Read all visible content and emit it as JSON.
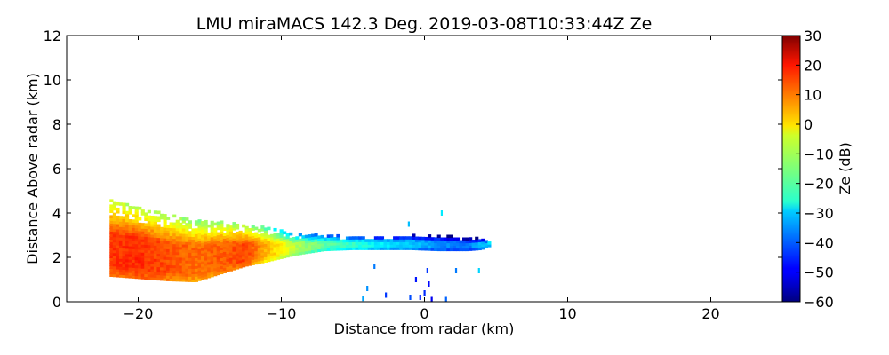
{
  "chart_data": {
    "type": "heatmap",
    "title": "LMU miraMACS 142.3 Deg. 2019-03-08T10:33:44Z  Ze",
    "xlabel": "Distance from radar (km)",
    "ylabel": "Distance Above radar  (km)",
    "xlim": [
      -25,
      25
    ],
    "ylim": [
      0,
      12
    ],
    "x_ticks": [
      -20,
      -10,
      0,
      10,
      20
    ],
    "x_tick_labels": [
      "−20",
      "−10",
      "0",
      "10",
      "20"
    ],
    "y_ticks": [
      0,
      2,
      4,
      6,
      8,
      10,
      12
    ],
    "y_tick_labels": [
      "0",
      "2",
      "4",
      "6",
      "8",
      "10",
      "12"
    ],
    "grid": false,
    "colorbar": {
      "label": "Ze (dB)",
      "colormap": "jet",
      "range": [
        -60,
        30
      ],
      "ticks": [
        30,
        20,
        10,
        0,
        -10,
        -20,
        -30,
        -40,
        -50,
        -60
      ],
      "tick_labels": [
        "30",
        "20",
        "10",
        "0",
        "−10",
        "−20",
        "−30",
        "−40",
        "−50",
        "−60"
      ]
    },
    "echo_band": {
      "units": "x km, height km, Ze dB",
      "profile": [
        {
          "x": -22.0,
          "bottom": 1.15,
          "top": 4.6,
          "ze": 14
        },
        {
          "x": -20.0,
          "bottom": 1.05,
          "top": 4.2,
          "ze": 15
        },
        {
          "x": -18.0,
          "bottom": 0.95,
          "top": 3.9,
          "ze": 12
        },
        {
          "x": -16.0,
          "bottom": 0.9,
          "top": 3.7,
          "ze": 9
        },
        {
          "x": -14.0,
          "bottom": 1.3,
          "top": 3.55,
          "ze": 11
        },
        {
          "x": -12.5,
          "bottom": 1.6,
          "top": 3.4,
          "ze": 13
        },
        {
          "x": -11.0,
          "bottom": 1.8,
          "top": 3.3,
          "ze": 3
        },
        {
          "x": -9.0,
          "bottom": 2.1,
          "top": 3.0,
          "ze": -10
        },
        {
          "x": -7.0,
          "bottom": 2.3,
          "top": 2.95,
          "ze": -18
        },
        {
          "x": -5.0,
          "bottom": 2.35,
          "top": 2.9,
          "ze": -22
        },
        {
          "x": -3.0,
          "bottom": 2.35,
          "top": 2.9,
          "ze": -28
        },
        {
          "x": -1.0,
          "bottom": 2.35,
          "top": 2.95,
          "ze": -31
        },
        {
          "x": 1.0,
          "bottom": 2.3,
          "top": 2.95,
          "ze": -36
        },
        {
          "x": 3.0,
          "bottom": 2.3,
          "top": 2.85,
          "ze": -38
        },
        {
          "x": 4.0,
          "bottom": 2.35,
          "top": 2.8,
          "ze": -33
        },
        {
          "x": 4.6,
          "bottom": 2.5,
          "top": 2.7,
          "ze": -28
        }
      ]
    },
    "clutter_points": [
      {
        "x": 0.0,
        "y": 0.4,
        "ze": -45
      },
      {
        "x": 0.3,
        "y": 0.8,
        "ze": -48
      },
      {
        "x": -0.3,
        "y": 0.2,
        "ze": -46
      },
      {
        "x": 0.5,
        "y": 0.1,
        "ze": -50
      },
      {
        "x": 0.2,
        "y": 1.4,
        "ze": -44
      },
      {
        "x": -0.6,
        "y": 1.0,
        "ze": -47
      },
      {
        "x": -2.7,
        "y": 0.3,
        "ze": -44
      },
      {
        "x": -4.0,
        "y": 0.6,
        "ze": -36
      },
      {
        "x": -3.5,
        "y": 1.6,
        "ze": -38
      },
      {
        "x": -1.0,
        "y": 0.2,
        "ze": -42
      },
      {
        "x": 1.5,
        "y": 0.1,
        "ze": -40
      },
      {
        "x": 2.2,
        "y": 1.4,
        "ze": -38
      },
      {
        "x": 3.8,
        "y": 1.4,
        "ze": -30
      },
      {
        "x": -1.1,
        "y": 3.5,
        "ze": -32
      },
      {
        "x": 1.2,
        "y": 4.0,
        "ze": -28
      },
      {
        "x": -4.3,
        "y": 0.15,
        "ze": -34
      }
    ]
  }
}
